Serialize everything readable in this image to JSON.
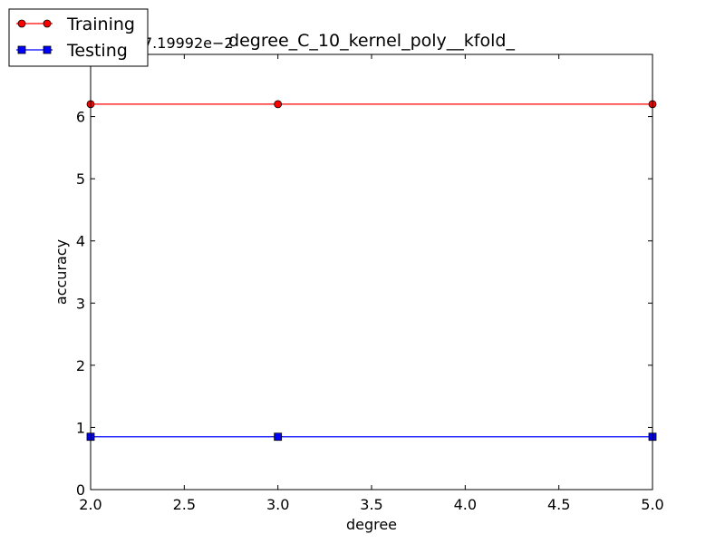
{
  "chart_data": {
    "type": "line",
    "title": "degree_C_10_kernel_poly__kfold_",
    "xlabel": "degree",
    "ylabel": "accuracy",
    "y_offset_text": "7.19992e−2",
    "x": [
      2,
      3,
      5
    ],
    "xlim": [
      2.0,
      5.0
    ],
    "ylim": [
      0,
      7
    ],
    "xticks": [
      "2.0",
      "2.5",
      "3.0",
      "3.5",
      "4.0",
      "4.5",
      "5.0"
    ],
    "yticks": [
      "0",
      "1",
      "2",
      "3",
      "4",
      "5",
      "6"
    ],
    "series": [
      {
        "name": "Training",
        "values": [
          6.2,
          6.2,
          6.2
        ],
        "color": "#ff0000",
        "marker": "circle"
      },
      {
        "name": "Testing",
        "values": [
          0.85,
          0.85,
          0.85
        ],
        "color": "#0000ff",
        "marker": "square"
      }
    ],
    "grid": false,
    "legend": "top-left, outside plot"
  }
}
